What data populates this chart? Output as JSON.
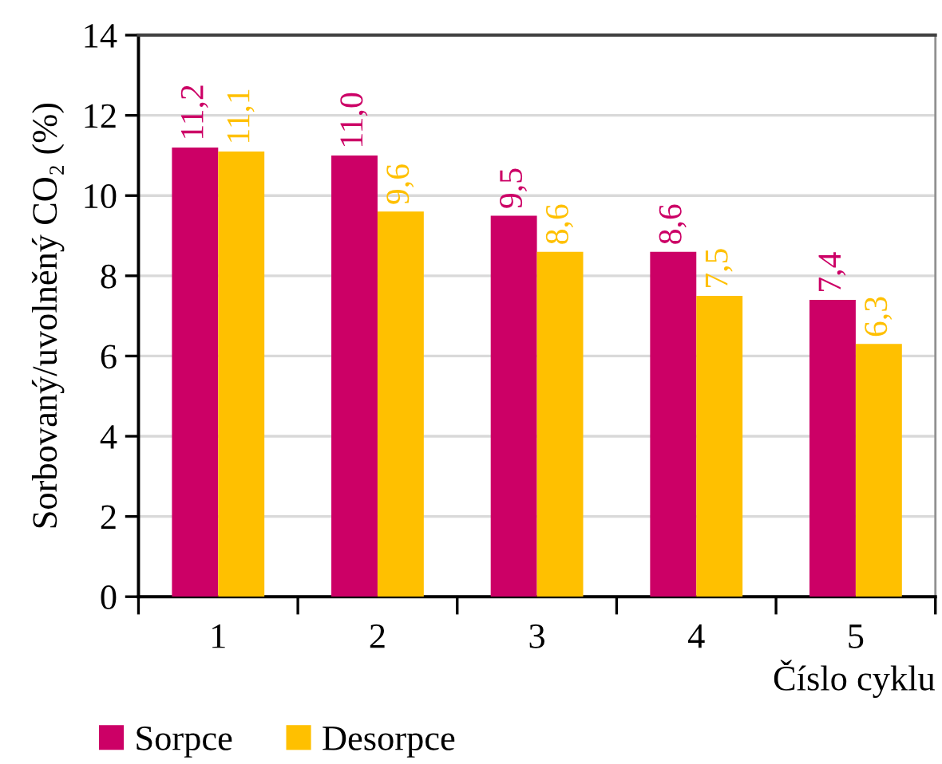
{
  "chart_data": {
    "type": "bar",
    "xlabel": "Číslo cyklu",
    "ylabel": "Sorbovaný/uvolněný CO₂ (%)",
    "categories": [
      "1",
      "2",
      "3",
      "4",
      "5"
    ],
    "series": [
      {
        "name": "Sorpce",
        "color": "#cc0066",
        "values": [
          11.2,
          11.0,
          9.5,
          8.6,
          7.4
        ],
        "value_labels": [
          "11,2",
          "11,0",
          "9,5",
          "8,6",
          "7,4"
        ]
      },
      {
        "name": "Desorpce",
        "color": "#ffc000",
        "values": [
          11.1,
          9.6,
          8.6,
          7.5,
          6.3
        ],
        "value_labels": [
          "11,1",
          "9,6",
          "8,6",
          "7,5",
          "6,3"
        ]
      }
    ],
    "ylim": [
      0,
      14
    ],
    "yticks": [
      0,
      2,
      4,
      6,
      8,
      10,
      12,
      14
    ],
    "grid": "y",
    "legend": "bottom left"
  }
}
